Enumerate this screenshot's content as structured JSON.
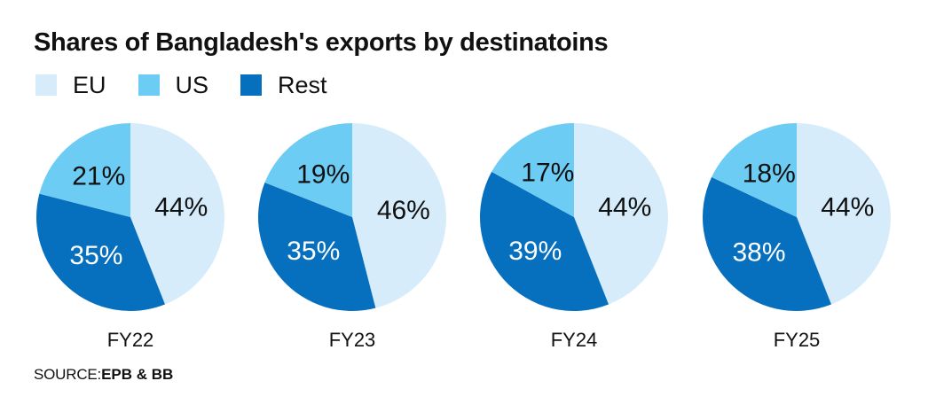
{
  "title": "Shares of Bangladesh's exports by destinatoins",
  "legend": [
    {
      "label": "EU",
      "color": "#d7ecfa"
    },
    {
      "label": "US",
      "color": "#6dccf3"
    },
    {
      "label": "Rest",
      "color": "#0770be"
    }
  ],
  "source": {
    "label": "SOURCE:",
    "value": "EPB & BB"
  },
  "chart_data": [
    {
      "type": "pie",
      "title": "FY22",
      "labels": [
        "EU",
        "Rest",
        "US"
      ],
      "values": [
        44,
        35,
        21
      ],
      "value_labels": [
        "44%",
        "35%",
        "21%"
      ]
    },
    {
      "type": "pie",
      "title": "FY23",
      "labels": [
        "EU",
        "Rest",
        "US"
      ],
      "values": [
        46,
        35,
        19
      ],
      "value_labels": [
        "46%",
        "35%",
        "19%"
      ]
    },
    {
      "type": "pie",
      "title": "FY24",
      "labels": [
        "EU",
        "Rest",
        "US"
      ],
      "values": [
        44,
        39,
        17
      ],
      "value_labels": [
        "44%",
        "39%",
        "17%"
      ]
    },
    {
      "type": "pie",
      "title": "FY25",
      "labels": [
        "EU",
        "Rest",
        "US"
      ],
      "values": [
        44,
        38,
        18
      ],
      "value_labels": [
        "44%",
        "38%",
        "18%"
      ]
    }
  ]
}
